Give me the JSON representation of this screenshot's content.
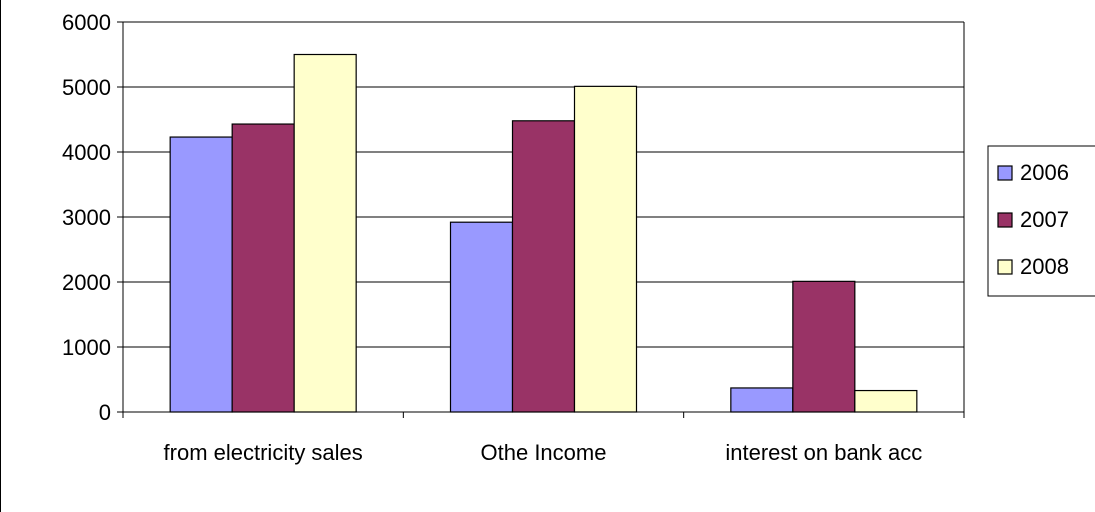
{
  "chart_data": {
    "type": "bar",
    "categories": [
      "from electricity sales",
      "Othe Income",
      "interest on bank acc"
    ],
    "series": [
      {
        "name": "2006",
        "color": "#9999FF",
        "values": [
          4230,
          2920,
          370
        ]
      },
      {
        "name": "2007",
        "color": "#993366",
        "values": [
          4430,
          4480,
          2010
        ]
      },
      {
        "name": "2008",
        "color": "#FFFFCC",
        "values": [
          5500,
          5010,
          330
        ]
      }
    ],
    "title": "",
    "xlabel": "",
    "ylabel": "",
    "ylim": [
      0,
      6000
    ],
    "yticks": [
      "0",
      "1000",
      "2000",
      "3000",
      "4000",
      "5000",
      "6000"
    ],
    "grid": true,
    "legend_position": "right"
  }
}
